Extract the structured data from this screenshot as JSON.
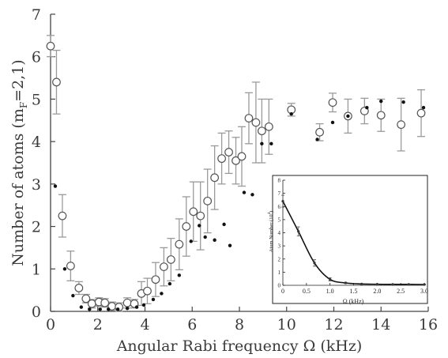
{
  "chart_data": [
    {
      "type": "scatter",
      "xlabel": "Angular Rabi frequency Ω (kHz)",
      "ylabel_main": "Number of atoms (m",
      "ylabel_sub": "F",
      "ylabel_tail": "=2,1)",
      "xlim": [
        0,
        16
      ],
      "ylim": [
        0,
        7
      ],
      "xticks": [
        "0",
        "2",
        "4",
        "6",
        "8",
        "10",
        "12",
        "14",
        "16"
      ],
      "yticks": [
        "0",
        "1",
        "2",
        "3",
        "4",
        "5",
        "6",
        "7"
      ],
      "series": [
        {
          "marker": "open-circle-errorbar",
          "x": [
            0,
            0.25,
            0.5,
            0.85,
            1.2,
            1.5,
            1.75,
            2.05,
            2.3,
            2.6,
            2.9,
            3.25,
            3.55,
            3.85,
            4.1,
            4.45,
            4.8,
            5.1,
            5.45,
            5.75,
            6.05,
            6.35,
            6.65,
            6.95,
            7.25,
            7.55,
            7.85,
            8.1,
            8.4,
            8.7,
            8.95,
            9.25,
            10.2,
            11.4,
            11.95,
            12.6,
            13.3,
            14,
            14.85,
            15.7
          ],
          "y": [
            6.25,
            5.4,
            2.25,
            1.07,
            0.55,
            0.3,
            0.18,
            0.22,
            0.2,
            0.12,
            0.1,
            0.2,
            0.18,
            0.42,
            0.48,
            0.75,
            1.05,
            1.22,
            1.58,
            2.0,
            2.35,
            2.25,
            2.6,
            3.15,
            3.6,
            3.75,
            3.55,
            3.65,
            4.55,
            4.45,
            4.25,
            4.35,
            4.75,
            4.22,
            4.92,
            4.6,
            4.72,
            4.62,
            4.4,
            4.67
          ],
          "err": [
            0.25,
            0.75,
            0.5,
            0.35,
            0.15,
            0.1,
            0.1,
            0.1,
            0.1,
            0.1,
            0.1,
            0.12,
            0.1,
            0.28,
            0.3,
            0.4,
            0.45,
            0.5,
            0.6,
            0.7,
            0.7,
            0.8,
            0.75,
            0.75,
            0.6,
            0.5,
            0.55,
            0.7,
            0.6,
            0.95,
            0.75,
            0.65,
            0.15,
            0.2,
            0.22,
            0.4,
            0.3,
            0.38,
            0.62,
            0.55
          ]
        },
        {
          "marker": "filled-dot",
          "x": [
            0.2,
            0.6,
            0.95,
            1.3,
            1.65,
            2.1,
            2.45,
            2.85,
            3.25,
            3.65,
            3.95,
            4.35,
            4.7,
            5.05,
            5.45,
            5.95,
            6.3,
            6.55,
            6.95,
            7.35,
            7.6,
            8.2,
            8.55,
            8.95,
            9.35,
            10.2,
            11.3,
            11.95,
            12.6,
            13.4,
            14,
            14.95,
            15.8
          ],
          "y": [
            2.95,
            1.0,
            0.37,
            0.1,
            0.05,
            0.05,
            0.05,
            0.05,
            0.07,
            0.1,
            0.15,
            0.28,
            0.42,
            0.65,
            0.85,
            1.65,
            2.02,
            1.75,
            1.68,
            2.05,
            1.55,
            2.8,
            2.75,
            3.95,
            3.95,
            4.65,
            4.05,
            4.45,
            4.6,
            4.8,
            4.95,
            4.93,
            4.8
          ]
        }
      ]
    },
    {
      "type": "scatter",
      "ylabel": "Atom Number (10",
      "ylabel_sup": "4",
      "ylabel_tail": ")",
      "xlabel": "Ω (kHz)",
      "xlim": [
        0,
        3
      ],
      "ylim": [
        0,
        8
      ],
      "xticks": [
        "0",
        "0.5",
        "1.0",
        "1.5",
        "2.0",
        "2.5",
        "3.0"
      ],
      "yticks": [
        "0",
        "1",
        "2",
        "3",
        "4",
        "5",
        "6",
        "7",
        "8"
      ],
      "x": [
        0.0,
        0.33,
        0.67,
        1.0,
        1.33,
        1.67,
        2.0,
        2.33,
        2.67,
        3.0
      ],
      "y": [
        6.4,
        4.1,
        1.7,
        0.45,
        0.18,
        0.1,
        0.08,
        0.07,
        0.07,
        0.06
      ],
      "err": [
        0.45,
        0.35,
        0.25,
        0.12,
        0.05,
        0.04,
        0.03,
        0.03,
        0.03,
        0.03
      ],
      "fit_curve": true
    }
  ]
}
